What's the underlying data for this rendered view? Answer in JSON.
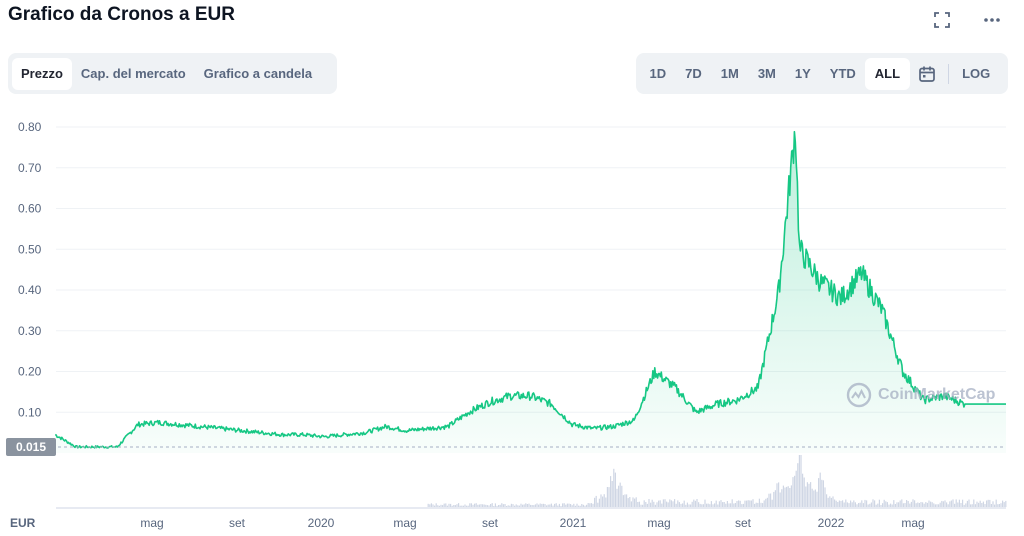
{
  "header": {
    "title": "Grafico da Cronos a EUR"
  },
  "icons": {
    "fullscreen": "fullscreen-icon",
    "more": "more-icon",
    "calendar": "calendar-icon"
  },
  "tabs_left": [
    "Prezzo",
    "Cap. del mercato",
    "Grafico a candela"
  ],
  "tabs_left_active": 0,
  "ranges": [
    "1D",
    "7D",
    "1M",
    "3M",
    "1Y",
    "YTD",
    "ALL"
  ],
  "ranges_active": 6,
  "log_label": "LOG",
  "price_tag": "0.015",
  "watermark": "CoinMarketCap",
  "colors": {
    "line": "#16c784",
    "fill": "#16c784",
    "volume": "#cfd6e4",
    "grid": "#eff2f5",
    "tag": "#8a939f"
  },
  "chart_data": {
    "type": "area",
    "currency_label": "EUR",
    "y_ticks": [
      "0.80",
      "0.70",
      "0.60",
      "0.50",
      "0.40",
      "0.30",
      "0.20",
      "0.10"
    ],
    "ylim": [
      0,
      0.8
    ],
    "x_labels": [
      "mag",
      "set",
      "2020",
      "mag",
      "set",
      "2021",
      "mag",
      "set",
      "2022",
      "mag"
    ],
    "x_range": [
      "2019-01",
      "2022-09"
    ],
    "grid": true,
    "price_series": {
      "name": "Prezzo",
      "x": [
        "2018-12",
        "2019-01",
        "2019-02",
        "2019-03",
        "2019-04",
        "2019-05",
        "2019-06",
        "2019-07",
        "2019-08",
        "2019-09",
        "2019-10",
        "2019-11",
        "2019-12",
        "2020-01",
        "2020-02",
        "2020-03",
        "2020-04",
        "2020-05",
        "2020-06",
        "2020-07",
        "2020-08",
        "2020-09",
        "2020-10",
        "2020-11",
        "2020-12",
        "2021-01",
        "2021-02",
        "2021-03",
        "2021-04",
        "2021-05",
        "2021-06",
        "2021-07",
        "2021-08",
        "2021-09",
        "2021-10",
        "2021-11",
        "2021-11-25",
        "2021-12",
        "2022-01",
        "2022-02",
        "2022-03",
        "2022-04",
        "2022-05",
        "2022-06",
        "2022-07",
        "2022-08"
      ],
      "y": [
        0.045,
        0.015,
        0.015,
        0.015,
        0.07,
        0.075,
        0.07,
        0.065,
        0.06,
        0.055,
        0.05,
        0.045,
        0.045,
        0.04,
        0.045,
        0.05,
        0.065,
        0.055,
        0.06,
        0.065,
        0.1,
        0.125,
        0.14,
        0.14,
        0.12,
        0.07,
        0.06,
        0.065,
        0.08,
        0.2,
        0.16,
        0.1,
        0.12,
        0.13,
        0.16,
        0.4,
        0.8,
        0.5,
        0.42,
        0.38,
        0.44,
        0.35,
        0.2,
        0.13,
        0.14,
        0.12
      ]
    },
    "volume_series": {
      "name": "Volume",
      "spikes": [
        {
          "x": "2021-03",
          "rel": 0.85
        },
        {
          "x": "2021-11",
          "rel": 0.5
        },
        {
          "x": "2021-12",
          "rel": 0.95
        },
        {
          "x": "2022-01",
          "rel": 0.45
        }
      ]
    }
  }
}
